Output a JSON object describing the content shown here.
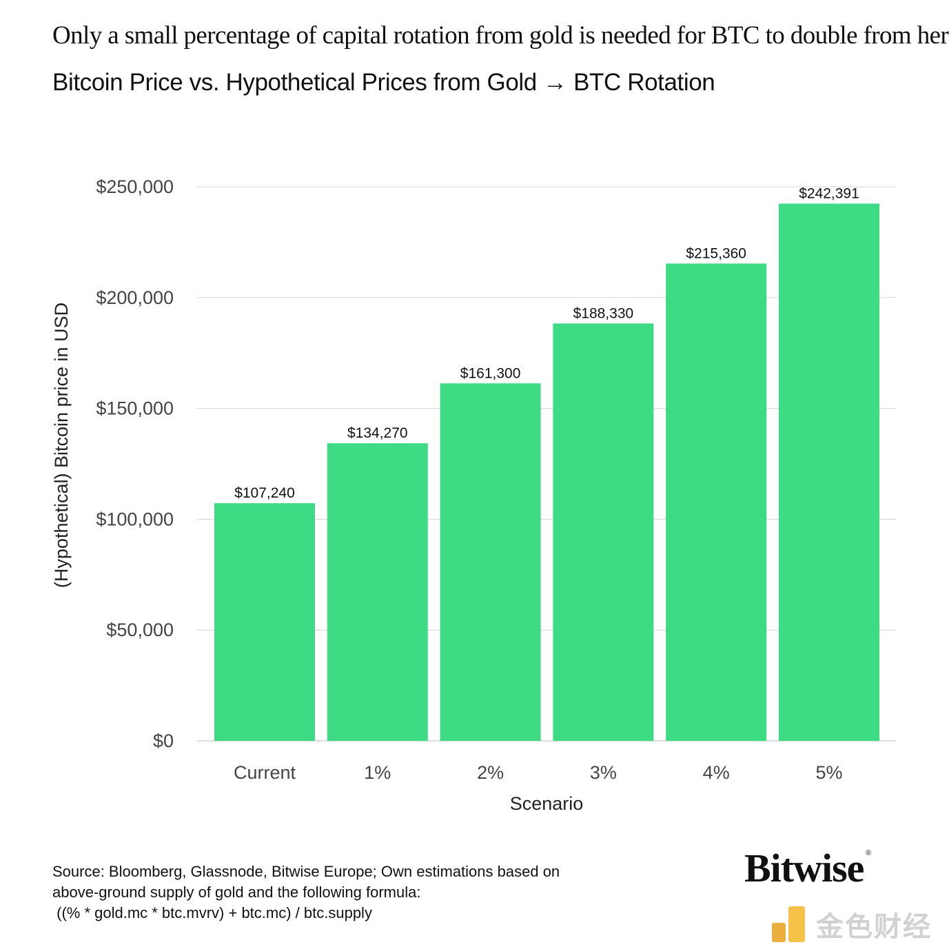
{
  "headline": "Only a small percentage of capital rotation from gold is needed for BTC to double from here",
  "chart_data": {
    "type": "bar",
    "title": "Bitcoin Price vs. Hypothetical Prices from Gold → BTC Rotation",
    "xlabel": "Scenario",
    "ylabel": "(Hypothetical) Bitcoin price in USD",
    "categories": [
      "Current",
      "1%",
      "2%",
      "3%",
      "4%",
      "5%"
    ],
    "values": [
      107240,
      134270,
      161300,
      188330,
      215360,
      242391
    ],
    "data_labels": [
      "$107,240",
      "$134,270",
      "$161,300",
      "$188,330",
      "$215,360",
      "$242,391"
    ],
    "ylim": [
      0,
      250000
    ],
    "yticks": [
      0,
      50000,
      100000,
      150000,
      200000,
      250000
    ],
    "ytick_labels": [
      "$0",
      "$50,000",
      "$100,000",
      "$150,000",
      "$200,000",
      "$250,000"
    ],
    "bar_color": "#3ddc84",
    "grid": true,
    "legend": "none"
  },
  "source": {
    "lines": [
      "Source: Bloomberg, Glassnode, Bitwise Europe; Own estimations based on",
      "above-ground supply of gold and the following formula:",
      " ((% * gold.mc * btc.mvrv) + btc.mc) / btc.supply"
    ]
  },
  "brand": {
    "name": "Bitwise",
    "mark": "®"
  },
  "watermark": {
    "icon": "jinse-logo-icon",
    "text": "金色财经"
  }
}
